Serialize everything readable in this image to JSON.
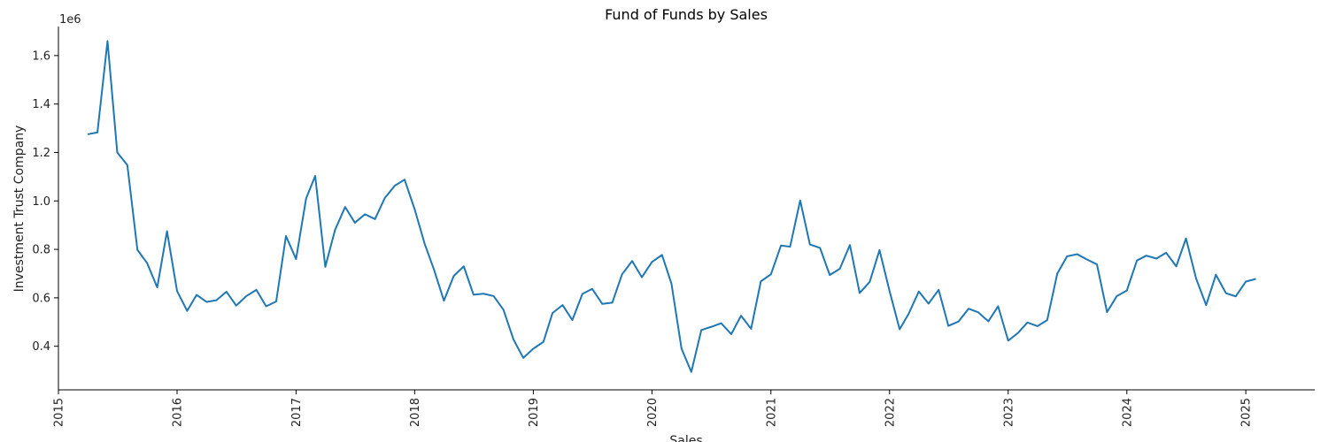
{
  "chart_data": {
    "type": "line",
    "title": "Fund of Funds by Sales",
    "xlabel": "Sales",
    "ylabel": "Investment Trust Company",
    "y_offset_label": "1e6",
    "xlim": [
      "2015-01-01",
      "2025-08-01"
    ],
    "ylim": [
      220000,
      1720000
    ],
    "x_ticks": [
      "2015",
      "2016",
      "2017",
      "2018",
      "2019",
      "2020",
      "2021",
      "2022",
      "2023",
      "2024",
      "2025"
    ],
    "y_ticks": [
      {
        "value": 400000,
        "label": "0.4"
      },
      {
        "value": 600000,
        "label": "0.6"
      },
      {
        "value": 800000,
        "label": "0.8"
      },
      {
        "value": 1000000,
        "label": "1.0"
      },
      {
        "value": 1200000,
        "label": "1.2"
      },
      {
        "value": 1400000,
        "label": "1.4"
      },
      {
        "value": 1600000,
        "label": "1.6"
      }
    ],
    "grid": false,
    "color": "#1f77b4",
    "series": [
      {
        "x": [
          "2015-04",
          "2015-05",
          "2015-06",
          "2015-07",
          "2015-08",
          "2015-09",
          "2015-10",
          "2015-11",
          "2015-12",
          "2016-01",
          "2016-02",
          "2016-03",
          "2016-04",
          "2016-05",
          "2016-06",
          "2016-07",
          "2016-08",
          "2016-09",
          "2016-10",
          "2016-11",
          "2016-12",
          "2017-01",
          "2017-02",
          "2017-03",
          "2017-04",
          "2017-05",
          "2017-06",
          "2017-07",
          "2017-08",
          "2017-09",
          "2017-10",
          "2017-11",
          "2017-12",
          "2018-01",
          "2018-02",
          "2018-03",
          "2018-04",
          "2018-05",
          "2018-06",
          "2018-07",
          "2018-08",
          "2018-09",
          "2018-10",
          "2018-11",
          "2018-12",
          "2019-01",
          "2019-02",
          "2019-03",
          "2019-04",
          "2019-05",
          "2019-06",
          "2019-07",
          "2019-08",
          "2019-09",
          "2019-10",
          "2019-11",
          "2019-12",
          "2020-01",
          "2020-02",
          "2020-03",
          "2020-04",
          "2020-05",
          "2020-06",
          "2020-07",
          "2020-08",
          "2020-09",
          "2020-10",
          "2020-11",
          "2020-12",
          "2021-01",
          "2021-02",
          "2021-03",
          "2021-04",
          "2021-05",
          "2021-06",
          "2021-07",
          "2021-08",
          "2021-09",
          "2021-10",
          "2021-11",
          "2021-12",
          "2022-01",
          "2022-02",
          "2022-03",
          "2022-04",
          "2022-05",
          "2022-06",
          "2022-07",
          "2022-08",
          "2022-09",
          "2022-10",
          "2022-11",
          "2022-12",
          "2023-01",
          "2023-02",
          "2023-03",
          "2023-04",
          "2023-05",
          "2023-06",
          "2023-07",
          "2023-08",
          "2023-09",
          "2023-10",
          "2023-11",
          "2023-12",
          "2024-01",
          "2024-02",
          "2024-03",
          "2024-04",
          "2024-05",
          "2024-06",
          "2024-07",
          "2024-08",
          "2024-09",
          "2024-10",
          "2024-11",
          "2024-12",
          "2025-01",
          "2025-02"
        ],
        "values": [
          1275000,
          1283000,
          1660000,
          1200000,
          1148000,
          798000,
          743000,
          643000,
          875000,
          628000,
          546000,
          612000,
          583000,
          590000,
          625000,
          568000,
          607000,
          633000,
          565000,
          585000,
          855000,
          760000,
          1010000,
          1103000,
          728000,
          880000,
          975000,
          910000,
          945000,
          925000,
          1012000,
          1063000,
          1088000,
          965000,
          822000,
          718000,
          588000,
          690000,
          730000,
          613000,
          617000,
          607000,
          551000,
          428000,
          352000,
          390000,
          418000,
          537000,
          570000,
          508000,
          616000,
          637000,
          575000,
          580000,
          697000,
          752000,
          685000,
          748000,
          777000,
          658000,
          390000,
          294000,
          467000,
          480000,
          495000,
          450000,
          526000,
          472000,
          668000,
          697000,
          816000,
          811000,
          1002000,
          820000,
          806000,
          694000,
          720000,
          818000,
          620000,
          666000,
          797000,
          628000,
          470000,
          535000,
          626000,
          576000,
          633000,
          484000,
          502000,
          555000,
          540000,
          503000,
          565000,
          423000,
          456000,
          498000,
          483000,
          508000,
          700000,
          771000,
          780000,
          758000,
          738000,
          541000,
          607000,
          630000,
          754000,
          774000,
          762000,
          786000,
          730000,
          845000,
          680000,
          570000,
          695000,
          619000,
          606000,
          667000,
          678000
        ]
      }
    ]
  }
}
